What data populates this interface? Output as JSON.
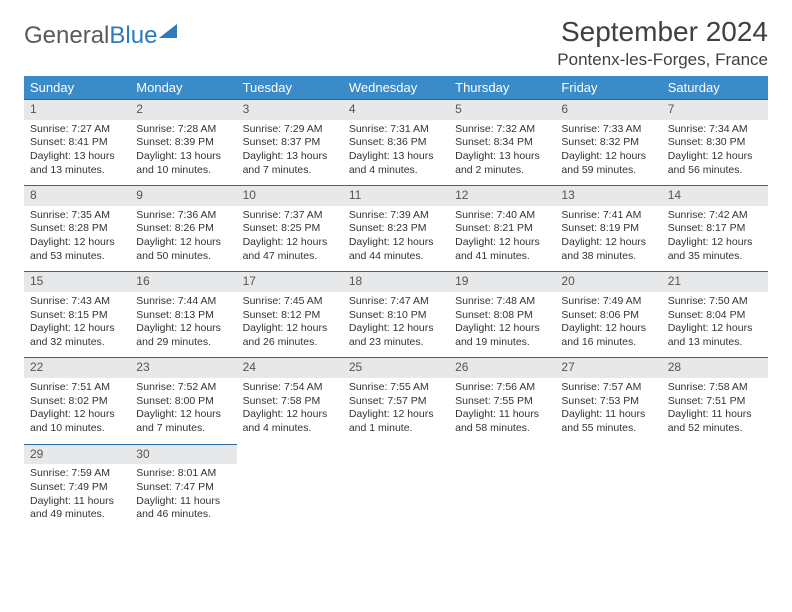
{
  "logo": {
    "part1": "General",
    "part2": "Blue"
  },
  "title": "September 2024",
  "location": "Pontenx-les-Forges, France",
  "colors": {
    "header_bg": "#3b8bc8",
    "header_text": "#ffffff",
    "daynum_bg": "#e7e8e9",
    "daynum_border": "#2b6aa0",
    "text": "#333333"
  },
  "weekdays": [
    "Sunday",
    "Monday",
    "Tuesday",
    "Wednesday",
    "Thursday",
    "Friday",
    "Saturday"
  ],
  "weeks": [
    [
      {
        "n": "1",
        "sr": "Sunrise: 7:27 AM",
        "ss": "Sunset: 8:41 PM",
        "d1": "Daylight: 13 hours",
        "d2": "and 13 minutes."
      },
      {
        "n": "2",
        "sr": "Sunrise: 7:28 AM",
        "ss": "Sunset: 8:39 PM",
        "d1": "Daylight: 13 hours",
        "d2": "and 10 minutes."
      },
      {
        "n": "3",
        "sr": "Sunrise: 7:29 AM",
        "ss": "Sunset: 8:37 PM",
        "d1": "Daylight: 13 hours",
        "d2": "and 7 minutes."
      },
      {
        "n": "4",
        "sr": "Sunrise: 7:31 AM",
        "ss": "Sunset: 8:36 PM",
        "d1": "Daylight: 13 hours",
        "d2": "and 4 minutes."
      },
      {
        "n": "5",
        "sr": "Sunrise: 7:32 AM",
        "ss": "Sunset: 8:34 PM",
        "d1": "Daylight: 13 hours",
        "d2": "and 2 minutes."
      },
      {
        "n": "6",
        "sr": "Sunrise: 7:33 AM",
        "ss": "Sunset: 8:32 PM",
        "d1": "Daylight: 12 hours",
        "d2": "and 59 minutes."
      },
      {
        "n": "7",
        "sr": "Sunrise: 7:34 AM",
        "ss": "Sunset: 8:30 PM",
        "d1": "Daylight: 12 hours",
        "d2": "and 56 minutes."
      }
    ],
    [
      {
        "n": "8",
        "sr": "Sunrise: 7:35 AM",
        "ss": "Sunset: 8:28 PM",
        "d1": "Daylight: 12 hours",
        "d2": "and 53 minutes."
      },
      {
        "n": "9",
        "sr": "Sunrise: 7:36 AM",
        "ss": "Sunset: 8:26 PM",
        "d1": "Daylight: 12 hours",
        "d2": "and 50 minutes."
      },
      {
        "n": "10",
        "sr": "Sunrise: 7:37 AM",
        "ss": "Sunset: 8:25 PM",
        "d1": "Daylight: 12 hours",
        "d2": "and 47 minutes."
      },
      {
        "n": "11",
        "sr": "Sunrise: 7:39 AM",
        "ss": "Sunset: 8:23 PM",
        "d1": "Daylight: 12 hours",
        "d2": "and 44 minutes."
      },
      {
        "n": "12",
        "sr": "Sunrise: 7:40 AM",
        "ss": "Sunset: 8:21 PM",
        "d1": "Daylight: 12 hours",
        "d2": "and 41 minutes."
      },
      {
        "n": "13",
        "sr": "Sunrise: 7:41 AM",
        "ss": "Sunset: 8:19 PM",
        "d1": "Daylight: 12 hours",
        "d2": "and 38 minutes."
      },
      {
        "n": "14",
        "sr": "Sunrise: 7:42 AM",
        "ss": "Sunset: 8:17 PM",
        "d1": "Daylight: 12 hours",
        "d2": "and 35 minutes."
      }
    ],
    [
      {
        "n": "15",
        "sr": "Sunrise: 7:43 AM",
        "ss": "Sunset: 8:15 PM",
        "d1": "Daylight: 12 hours",
        "d2": "and 32 minutes."
      },
      {
        "n": "16",
        "sr": "Sunrise: 7:44 AM",
        "ss": "Sunset: 8:13 PM",
        "d1": "Daylight: 12 hours",
        "d2": "and 29 minutes."
      },
      {
        "n": "17",
        "sr": "Sunrise: 7:45 AM",
        "ss": "Sunset: 8:12 PM",
        "d1": "Daylight: 12 hours",
        "d2": "and 26 minutes."
      },
      {
        "n": "18",
        "sr": "Sunrise: 7:47 AM",
        "ss": "Sunset: 8:10 PM",
        "d1": "Daylight: 12 hours",
        "d2": "and 23 minutes."
      },
      {
        "n": "19",
        "sr": "Sunrise: 7:48 AM",
        "ss": "Sunset: 8:08 PM",
        "d1": "Daylight: 12 hours",
        "d2": "and 19 minutes."
      },
      {
        "n": "20",
        "sr": "Sunrise: 7:49 AM",
        "ss": "Sunset: 8:06 PM",
        "d1": "Daylight: 12 hours",
        "d2": "and 16 minutes."
      },
      {
        "n": "21",
        "sr": "Sunrise: 7:50 AM",
        "ss": "Sunset: 8:04 PM",
        "d1": "Daylight: 12 hours",
        "d2": "and 13 minutes."
      }
    ],
    [
      {
        "n": "22",
        "sr": "Sunrise: 7:51 AM",
        "ss": "Sunset: 8:02 PM",
        "d1": "Daylight: 12 hours",
        "d2": "and 10 minutes."
      },
      {
        "n": "23",
        "sr": "Sunrise: 7:52 AM",
        "ss": "Sunset: 8:00 PM",
        "d1": "Daylight: 12 hours",
        "d2": "and 7 minutes."
      },
      {
        "n": "24",
        "sr": "Sunrise: 7:54 AM",
        "ss": "Sunset: 7:58 PM",
        "d1": "Daylight: 12 hours",
        "d2": "and 4 minutes."
      },
      {
        "n": "25",
        "sr": "Sunrise: 7:55 AM",
        "ss": "Sunset: 7:57 PM",
        "d1": "Daylight: 12 hours",
        "d2": "and 1 minute."
      },
      {
        "n": "26",
        "sr": "Sunrise: 7:56 AM",
        "ss": "Sunset: 7:55 PM",
        "d1": "Daylight: 11 hours",
        "d2": "and 58 minutes."
      },
      {
        "n": "27",
        "sr": "Sunrise: 7:57 AM",
        "ss": "Sunset: 7:53 PM",
        "d1": "Daylight: 11 hours",
        "d2": "and 55 minutes."
      },
      {
        "n": "28",
        "sr": "Sunrise: 7:58 AM",
        "ss": "Sunset: 7:51 PM",
        "d1": "Daylight: 11 hours",
        "d2": "and 52 minutes."
      }
    ],
    [
      {
        "n": "29",
        "sr": "Sunrise: 7:59 AM",
        "ss": "Sunset: 7:49 PM",
        "d1": "Daylight: 11 hours",
        "d2": "and 49 minutes."
      },
      {
        "n": "30",
        "sr": "Sunrise: 8:01 AM",
        "ss": "Sunset: 7:47 PM",
        "d1": "Daylight: 11 hours",
        "d2": "and 46 minutes."
      },
      null,
      null,
      null,
      null,
      null
    ]
  ]
}
